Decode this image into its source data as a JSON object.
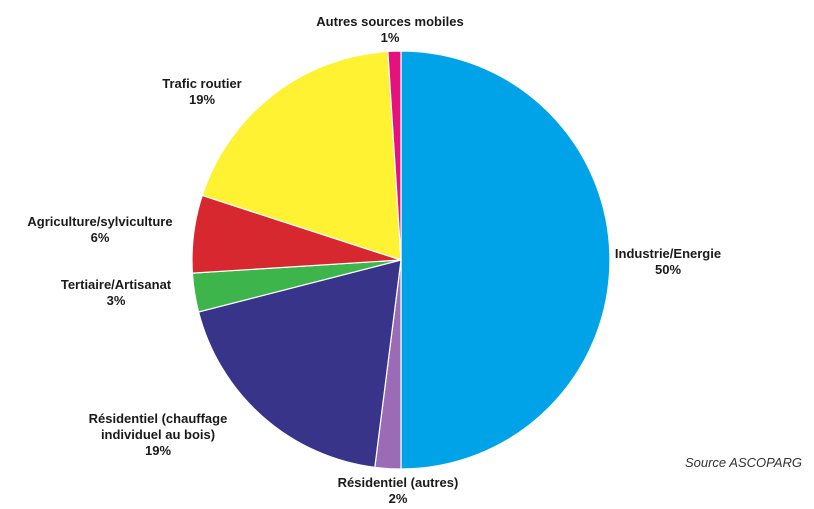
{
  "chart_data": {
    "type": "pie",
    "categories": [
      "Industrie/Energie",
      "Résidentiel (autres)",
      "Résidentiel (chauffage individuel au bois)",
      "Tertiaire/Artisanat",
      "Agriculture/sylviculture",
      "Trafic routier",
      "Autres sources mobiles"
    ],
    "values": [
      50,
      2,
      19,
      3,
      6,
      19,
      1
    ],
    "value_labels": [
      "50%",
      "2%",
      "19%",
      "3%",
      "6%",
      "19%",
      "1%"
    ],
    "colors": [
      "#00a3e8",
      "#9b6bb5",
      "#37348a",
      "#3db54a",
      "#d7282f",
      "#fef232",
      "#e5127d"
    ],
    "source": "Source ASCOPARG"
  }
}
